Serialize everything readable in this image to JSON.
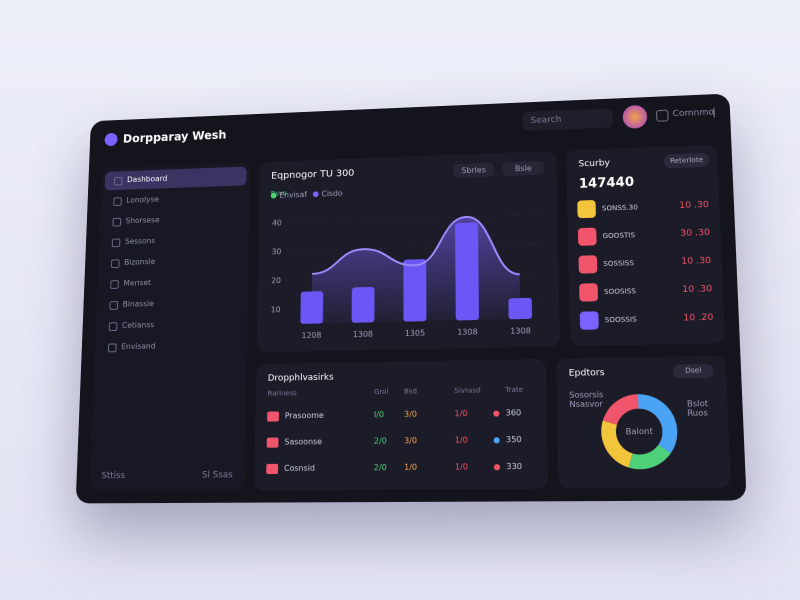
{
  "header": {
    "title": "Dorpparay Wesh",
    "search": "Search",
    "user": "Comnmo"
  },
  "sidebar": {
    "items": [
      "Dashboard",
      "Lonolyse",
      "Shorsese",
      "Sessons",
      "Bizonsle",
      "Meriset",
      "Binassie",
      "Cetianss",
      "Envisand"
    ],
    "footer": "Sttiss",
    "footer_right": "Sl Ssas"
  },
  "chart": {
    "title": "Eqpnogor TU 300",
    "badge": "Rsvo",
    "legend": [
      "Envisaf",
      "Cisdo"
    ],
    "controls": [
      "Sbrles",
      "Bsle"
    ],
    "categories": [
      "1208",
      "1308",
      "1305",
      "1308",
      "1308"
    ],
    "ylim": [
      5,
      45
    ],
    "yticks": [
      10,
      20,
      30,
      40
    ],
    "bars": [
      16,
      17,
      26,
      38,
      12
    ],
    "line": [
      22,
      30,
      24,
      40,
      20
    ]
  },
  "balance": {
    "title": "Scurby",
    "button": "Reterlote",
    "amount": "147440",
    "rows": [
      {
        "label": "SONSS.30",
        "value": "10 .30"
      },
      {
        "label": "GOOSTIS",
        "value": "30 .30"
      },
      {
        "label": "SOSSISS",
        "value": "10 .30"
      },
      {
        "label": "SOOSISS",
        "value": "10 .30"
      },
      {
        "label": "SOOSSIS",
        "value": "10 .20"
      }
    ]
  },
  "table": {
    "title": "Dropphlvasirks",
    "columns": [
      "Rariness",
      "Grol",
      "Bsd",
      "Sivrasd",
      "Trate"
    ],
    "rows": [
      [
        "Prasoome",
        "I/0",
        "3/0",
        "1/0",
        "360"
      ],
      [
        "Sasoonse",
        "2/0",
        "3/0",
        "1/0",
        "350"
      ],
      [
        "Cosnsid",
        "2/0",
        "1/0",
        "1/0",
        "330"
      ]
    ]
  },
  "donut": {
    "title": "Epdtors",
    "button": "Dsel",
    "center": "Balont",
    "legend_left": [
      "Sosorsis",
      "Nsasvor"
    ],
    "legend_right": [
      "Bslot",
      "Ruos"
    ],
    "values": [
      35,
      20,
      25,
      20
    ],
    "colors": [
      "#4aa3f5",
      "#4fd17a",
      "#f3c53c",
      "#f0556b"
    ]
  }
}
